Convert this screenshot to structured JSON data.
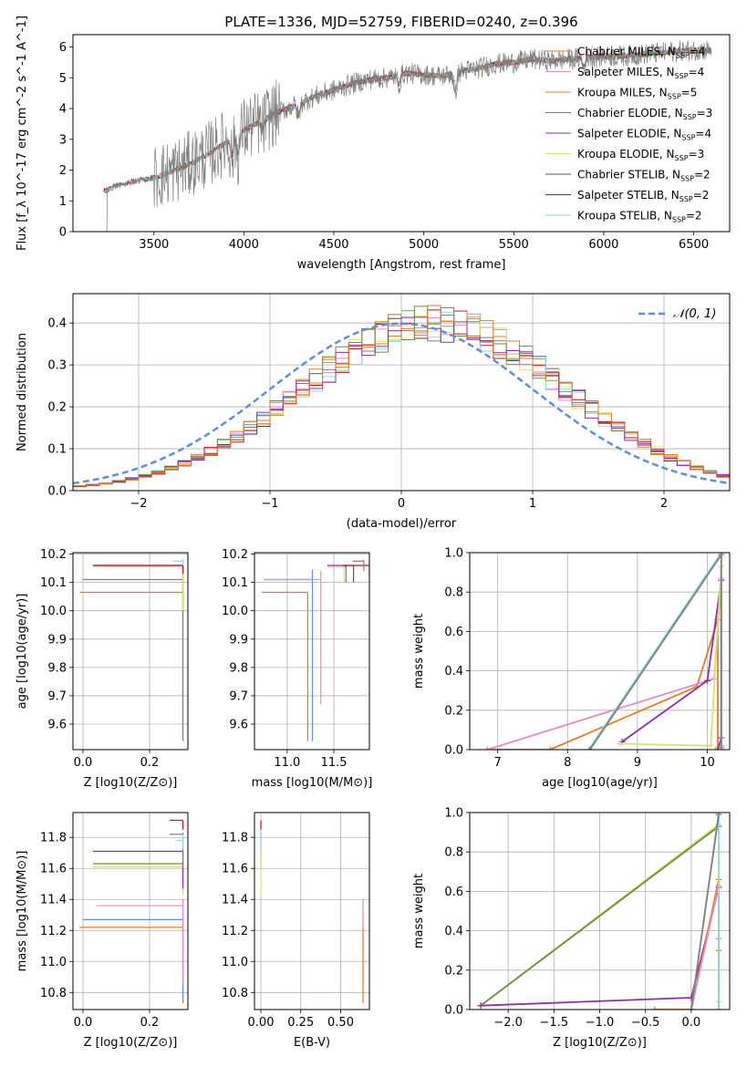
{
  "figure_title": "PLATE=1336, MJD=52759, FIBERID=0240, z=0.396",
  "colors": {
    "c1": "#e47d1f",
    "c2": "#7f7f7f",
    "c3": "#8e2fa8",
    "c4": "#d7e36a",
    "c5": "#b5171c",
    "c6": "#8fd9e0",
    "c7": "#6b8f3f",
    "c8": "#e38ac3",
    "c9": "#5f8fd6"
  },
  "chart_data": [
    {
      "type": "line",
      "id": "spectrum",
      "title": "PLATE=1336, MJD=52759, FIBERID=0240, z=0.396",
      "xlabel": "wavelength [Angstrom, rest frame]",
      "ylabel": "Flux [f_λ 10^-17 erg cm^-2 s^-1 A^-1]",
      "xlim": [
        3050,
        6700
      ],
      "ylim": [
        0,
        6.4
      ],
      "xticks": [
        3500,
        4000,
        4500,
        5000,
        5500,
        6000,
        6500
      ],
      "yticks": [
        0,
        1,
        2,
        3,
        4,
        5,
        6
      ],
      "grid": false,
      "legend_position": "top-right",
      "continuum_x": [
        3220,
        3300,
        3400,
        3500,
        3600,
        3700,
        3800,
        3900,
        4000,
        4100,
        4200,
        4300,
        4400,
        4500,
        4600,
        4700,
        4800,
        4900,
        5000,
        5100,
        5200,
        5300,
        5400,
        5500,
        5600,
        5700,
        5800,
        5900,
        6000,
        6100,
        6200,
        6300,
        6400,
        6500,
        6600
      ],
      "continuum_y": [
        1.3,
        1.5,
        1.65,
        1.75,
        1.95,
        2.2,
        2.5,
        2.9,
        3.3,
        3.6,
        3.9,
        4.15,
        4.4,
        4.6,
        4.8,
        4.95,
        5.0,
        5.15,
        5.1,
        5.05,
        5.2,
        5.3,
        5.45,
        5.5,
        5.6,
        5.55,
        5.6,
        5.65,
        5.7,
        5.7,
        5.75,
        5.8,
        5.85,
        5.9,
        5.9
      ],
      "series": [
        {
          "name": "Chabrier MILES, N_SSP=4",
          "legend_main": "Chabrier MILES, N",
          "legend_sub": "SSP",
          "legend_tail": "=4",
          "color": "#e47d1f",
          "xstart": 3520
        },
        {
          "name": "Salpeter MILES, N_SSP=4",
          "legend_main": "Salpeter MILES, N",
          "legend_sub": "SSP",
          "legend_tail": "=4",
          "color": "#e38ac3",
          "xstart": 3520
        },
        {
          "name": "Kroupa MILES, N_SSP=5",
          "legend_main": "Kroupa MILES, N",
          "legend_sub": "SSP",
          "legend_tail": "=5",
          "color": "#e47d1f",
          "xstart": 3520
        },
        {
          "name": "Chabrier ELODIE, N_SSP=3",
          "legend_main": "Chabrier ELODIE, N",
          "legend_sub": "SSP",
          "legend_tail": "=3",
          "color": "#6b8f3f",
          "xstart": 3920
        },
        {
          "name": "Salpeter ELODIE, N_SSP=4",
          "legend_main": "Salpeter ELODIE, N",
          "legend_sub": "SSP",
          "legend_tail": "=4",
          "color": "#8e2fa8",
          "xstart": 3920
        },
        {
          "name": "Kroupa ELODIE, N_SSP=3",
          "legend_main": "Kroupa ELODIE, N",
          "legend_sub": "SSP",
          "legend_tail": "=3",
          "color": "#d7e36a",
          "xstart": 3920
        },
        {
          "name": "Chabrier STELIB, N_SSP=2",
          "legend_main": "Chabrier STELIB, N",
          "legend_sub": "SSP",
          "legend_tail": "=2",
          "color": "#555555",
          "xstart": 3220
        },
        {
          "name": "Salpeter STELIB, N_SSP=2",
          "legend_main": "Salpeter STELIB, N",
          "legend_sub": "SSP",
          "legend_tail": "=2",
          "color": "#b5171c",
          "xstart": 3220
        },
        {
          "name": "Kroupa STELIB, N_SSP=2",
          "legend_main": "Kroupa STELIB, N",
          "legend_sub": "SSP",
          "legend_tail": "=2",
          "color": "#8fd9e0",
          "xstart": 3220
        }
      ]
    },
    {
      "type": "line",
      "id": "residuals",
      "xlabel": "(data-model)/error",
      "ylabel": "Normed distribution",
      "xlim": [
        -2.5,
        2.5
      ],
      "ylim": [
        0,
        0.47
      ],
      "xticks": [
        -2,
        -1,
        0,
        1,
        2
      ],
      "yticks": [
        0.0,
        0.1,
        0.2,
        0.3,
        0.4
      ],
      "grid": true,
      "legend_position": "top-right",
      "gaussian_label": "𝒩(0, 1)",
      "gaussian_color": "#5f8fd6",
      "hist_colors": [
        "#e47d1f",
        "#e38ac3",
        "#7f7f7f",
        "#d7e36a",
        "#b5171c",
        "#8fd9e0",
        "#6b8f3f",
        "#8e2fa8",
        "#e47d1f"
      ]
    },
    {
      "type": "scatter",
      "id": "age-vs-Z",
      "xlabel": "Z [log10(Z/Z⊙)]",
      "ylabel": "age [log10(age/yr)]",
      "xlim": [
        -0.03,
        0.315
      ],
      "ylim": [
        9.51,
        10.205
      ],
      "xticks": [
        0.0,
        0.2
      ],
      "yticks": [
        9.6,
        9.7,
        9.8,
        9.9,
        10.0,
        10.1,
        10.2
      ],
      "grid": true,
      "errorbars": [
        {
          "color": "#e47d1f",
          "x": 0.3,
          "y": 10.065,
          "xlo": -0.01,
          "ylo": 9.56,
          "yhi": 10.065
        },
        {
          "color": "#7f7f7f",
          "x": 0.3,
          "y": 10.11,
          "xlo": 0.0,
          "ylo": 9.54,
          "yhi": 10.11
        },
        {
          "color": "#8e2fa8",
          "x": 0.3,
          "y": 10.16,
          "xlo": 0.03,
          "ylo": 10.0,
          "yhi": 10.16
        },
        {
          "color": "#d7e36a",
          "x": 0.3,
          "y": 10.155,
          "xlo": 0.03,
          "ylo": 10.0,
          "yhi": 10.155
        },
        {
          "color": "#b5171c",
          "x": 0.3,
          "y": 10.16,
          "xlo": 0.03,
          "ylo": 10.13,
          "yhi": 10.18
        },
        {
          "color": "#8fd9e0",
          "x": 0.3,
          "y": 10.175,
          "xlo": 0.27,
          "ylo": 10.16,
          "yhi": 10.18
        }
      ]
    },
    {
      "type": "scatter",
      "id": "age-vs-mass",
      "xlabel": "mass [log10(M/M⊙)]",
      "ylabel": "",
      "xlim": [
        10.65,
        11.88
      ],
      "ylim": [
        9.51,
        10.205
      ],
      "xticks": [
        11.0,
        11.5
      ],
      "yticks": [
        9.6,
        9.7,
        9.8,
        9.9,
        10.0,
        10.1,
        10.2
      ],
      "grid": true,
      "errorbars": [
        {
          "color": "#e47d1f",
          "x": 11.22,
          "y": 10.065,
          "xlo": 10.73,
          "ylo": 9.54,
          "yhi": 10.065
        },
        {
          "color": "#5f8fd6",
          "x": 11.27,
          "y": 10.11,
          "xlo": 10.75,
          "ylo": 9.54,
          "yhi": 10.145
        },
        {
          "color": "#e38ac3",
          "x": 11.36,
          "y": 10.11,
          "xlo": 10.75,
          "ylo": 9.67,
          "yhi": 10.14
        },
        {
          "color": "#6b8f3f",
          "x": 11.63,
          "y": 10.155,
          "xlo": 11.43,
          "ylo": 10.1,
          "yhi": 10.16
        },
        {
          "color": "#d7e36a",
          "x": 11.61,
          "y": 10.155,
          "xlo": 11.43,
          "ylo": 10.1,
          "yhi": 10.16
        },
        {
          "color": "#8e2fa8",
          "x": 11.71,
          "y": 10.16,
          "xlo": 11.43,
          "ylo": 10.1,
          "yhi": 10.16
        },
        {
          "color": "#b5171c",
          "x": 11.88,
          "y": 10.16,
          "xlo": 11.6,
          "ylo": 10.12,
          "yhi": 10.18
        },
        {
          "color": "#7f7f7f",
          "x": 11.82,
          "y": 10.175,
          "xlo": 11.7,
          "ylo": 10.14,
          "yhi": 10.18
        }
      ]
    },
    {
      "type": "line",
      "id": "massweight-vs-age",
      "xlabel": "age [log10(age/yr)]",
      "ylabel": "mass weight",
      "xlim": [
        6.6,
        10.32
      ],
      "ylim": [
        0.0,
        1.0
      ],
      "xticks": [
        7,
        8,
        9,
        10
      ],
      "yticks": [
        0.0,
        0.2,
        0.4,
        0.6,
        0.8,
        1.0
      ],
      "grid": true,
      "series": [
        {
          "color": "#e47d1f",
          "x": [
            6.85,
            7.75,
            9.85,
            10.15,
            10.15
          ],
          "y": [
            0.0,
            0.0,
            0.32,
            0.66,
            0.01
          ]
        },
        {
          "color": "#e38ac3",
          "x": [
            6.85,
            10.1,
            10.2,
            10.2
          ],
          "y": [
            0.0,
            0.36,
            0.87,
            0.02
          ]
        },
        {
          "color": "#8e2fa8",
          "x": [
            8.78,
            10.0,
            10.2,
            10.2,
            10.15
          ],
          "y": [
            0.04,
            0.35,
            0.86,
            0.06,
            0.0
          ]
        },
        {
          "color": "#d7e36a",
          "x": [
            8.75,
            10.05,
            10.2,
            10.2
          ],
          "y": [
            0.03,
            0.02,
            0.93,
            0.0
          ]
        },
        {
          "color": "#8fd9e0",
          "x": [
            8.3,
            10.2,
            10.2
          ],
          "y": [
            0.0,
            1.0,
            0.0
          ]
        },
        {
          "color": "#7f7f7f",
          "x": [
            8.32,
            10.2,
            10.2
          ],
          "y": [
            0.0,
            0.99,
            0.01
          ]
        }
      ]
    },
    {
      "type": "scatter",
      "id": "mass-vs-Z",
      "xlabel": "Z [log10(Z/Z⊙)]",
      "ylabel": "mass [log10(M/M⊙)]",
      "xlim": [
        -0.03,
        0.315
      ],
      "ylim": [
        10.69,
        11.96
      ],
      "xticks": [
        0.0,
        0.2
      ],
      "yticks": [
        10.8,
        11.0,
        11.2,
        11.4,
        11.6,
        11.8
      ],
      "grid": true,
      "errorbars": [
        {
          "color": "#e47d1f",
          "x": 0.3,
          "y": 11.22,
          "xlo": -0.01,
          "ylo": 10.73,
          "yhi": 11.22
        },
        {
          "color": "#5f8fd6",
          "x": 0.3,
          "y": 11.27,
          "xlo": 0.0,
          "ylo": 10.75,
          "yhi": 11.27
        },
        {
          "color": "#e38ac3",
          "x": 0.3,
          "y": 11.36,
          "xlo": 0.04,
          "ylo": 10.85,
          "yhi": 11.4
        },
        {
          "color": "#6b8f3f",
          "x": 0.3,
          "y": 11.63,
          "xlo": 0.03,
          "ylo": 11.5,
          "yhi": 11.65
        },
        {
          "color": "#d7e36a",
          "x": 0.3,
          "y": 11.61,
          "xlo": 0.03,
          "ylo": 11.43,
          "yhi": 11.7
        },
        {
          "color": "#8e2fa8",
          "x": 0.3,
          "y": 11.71,
          "xlo": 0.03,
          "ylo": 11.47,
          "yhi": 11.72
        },
        {
          "color": "#7f7f7f",
          "x": 0.3,
          "y": 11.82,
          "xlo": 0.26,
          "ylo": 11.6,
          "yhi": 11.83
        },
        {
          "color": "#b5171c",
          "x": 0.3,
          "y": 11.91,
          "xlo": 0.26,
          "ylo": 11.85,
          "yhi": 11.91
        },
        {
          "color": "#8fd9e0",
          "x": 0.3,
          "y": 11.78,
          "xlo": 0.28,
          "ylo": 11.72,
          "yhi": 11.82
        }
      ]
    },
    {
      "type": "scatter",
      "id": "mass-vs-ebv",
      "xlabel": "E(B-V)",
      "ylabel": "",
      "xlim": [
        -0.04,
        0.68
      ],
      "ylim": [
        10.69,
        11.96
      ],
      "xticks": [
        0.0,
        0.25,
        0.5
      ],
      "yticks": [
        10.8,
        11.0,
        11.2,
        11.4,
        11.6,
        11.8
      ],
      "grid": true,
      "errorbars": [
        {
          "color": "#e38ac3",
          "x": 0.0,
          "ylo": 11.6,
          "yhi": 11.83
        },
        {
          "color": "#d7e36a",
          "x": 0.0,
          "ylo": 11.43,
          "yhi": 11.7
        },
        {
          "color": "#8fd9e0",
          "x": 0.0,
          "ylo": 11.7,
          "yhi": 11.82
        },
        {
          "color": "#b5171c",
          "x": 0.0,
          "ylo": 11.85,
          "yhi": 11.91
        },
        {
          "color": "#e38ac3",
          "x": 0.64,
          "ylo": 10.85,
          "yhi": 11.4
        },
        {
          "color": "#e47d1f",
          "x": 0.64,
          "ylo": 10.73,
          "yhi": 11.22
        }
      ]
    },
    {
      "type": "line",
      "id": "massweight-vs-Z",
      "xlabel": "Z [log10(Z/Z⊙)]",
      "ylabel": "mass weight",
      "xlim": [
        -2.42,
        0.42
      ],
      "ylim": [
        0.0,
        1.0
      ],
      "xticks": [
        -2.0,
        -1.5,
        -1.0,
        -0.5,
        0.0
      ],
      "yticks": [
        0.0,
        0.2,
        0.4,
        0.6,
        0.8,
        1.0
      ],
      "grid": true,
      "series": [
        {
          "color": "#d7e36a",
          "x": [
            -2.3,
            0.3,
            0.3
          ],
          "y": [
            0.02,
            0.94,
            0.04
          ]
        },
        {
          "color": "#6b8f3f",
          "x": [
            -2.3,
            0.3
          ],
          "y": [
            0.02,
            0.93
          ]
        },
        {
          "color": "#8e2fa8",
          "x": [
            -2.3,
            0.0,
            0.3,
            0.3
          ],
          "y": [
            0.02,
            0.06,
            0.62,
            0.0
          ]
        },
        {
          "color": "#e47d1f",
          "x": [
            -0.4,
            0.0,
            0.3,
            0.3
          ],
          "y": [
            0.0,
            0.0,
            0.66,
            0.3
          ]
        },
        {
          "color": "#e38ac3",
          "x": [
            0.0,
            0.3,
            0.3
          ],
          "y": [
            0.0,
            0.63,
            0.36
          ]
        },
        {
          "color": "#8fd9e0",
          "x": [
            0.0,
            0.3,
            0.3
          ],
          "y": [
            0.0,
            1.0,
            0.0
          ]
        },
        {
          "color": "#7f7f7f",
          "x": [
            0.0,
            0.3
          ],
          "y": [
            0.0,
            0.99
          ]
        }
      ]
    }
  ]
}
